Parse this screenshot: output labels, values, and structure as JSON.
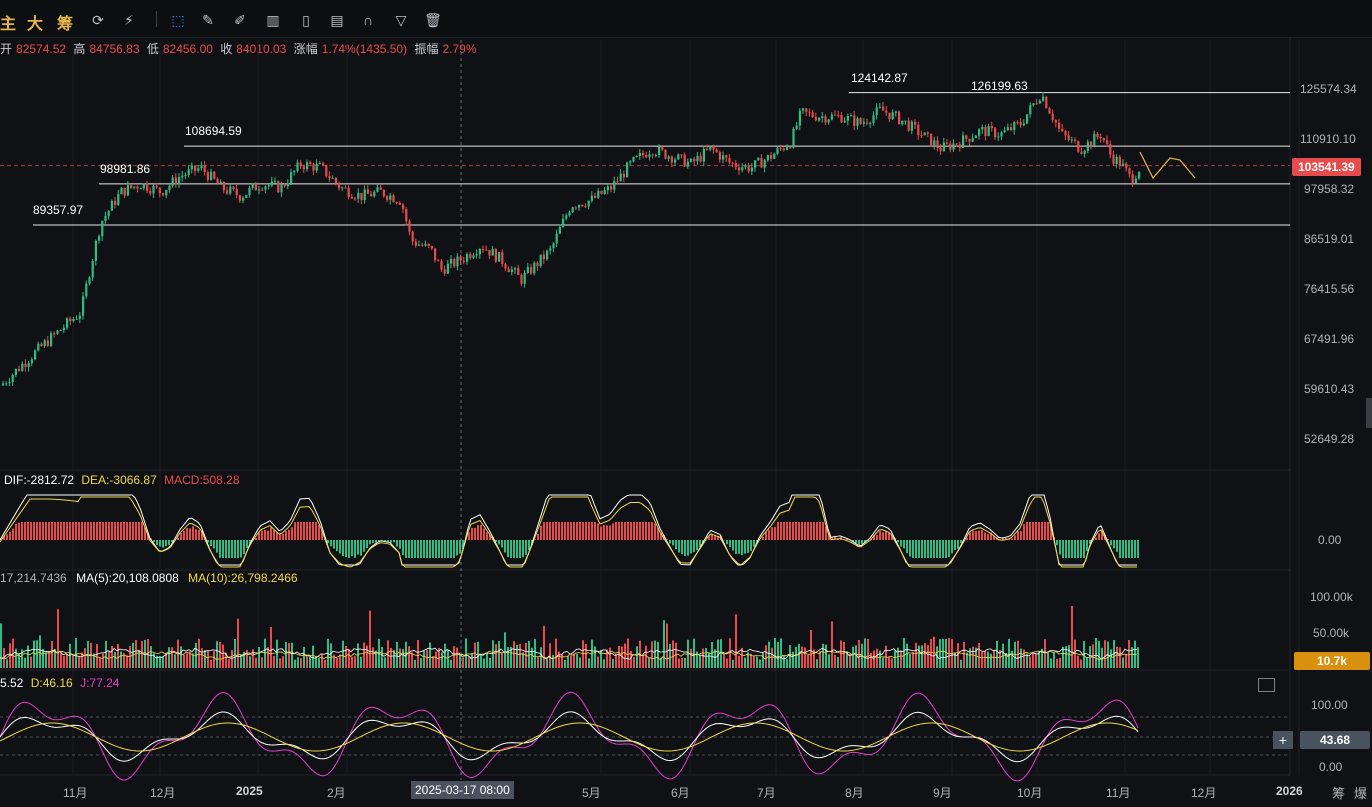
{
  "toolbar": {
    "labels": [
      "主",
      "大",
      "筹"
    ],
    "icons": [
      "refresh-icon",
      "magic-wand-icon",
      "cursor-icon",
      "ruler-icon",
      "pen-icon",
      "indicator-icon",
      "lock-icon",
      "edit-icon",
      "magnet-icon",
      "filter-icon",
      "trash-icon"
    ]
  },
  "ohlc": {
    "open_k": "开",
    "open_v": "82574.52",
    "high_k": "高",
    "high_v": "84756.83",
    "low_k": "低",
    "low_v": "82456.00",
    "close_k": "收",
    "close_v": "84010.03",
    "chg_k": "涨幅",
    "chg_v": "1.74%(1435.50)",
    "amp_k": "振幅",
    "amp_v": "2.79%"
  },
  "price_axis": [
    "125574.34",
    "110910.10",
    "97958.32",
    "86519.01",
    "76415.56",
    "67491.96",
    "59610.43",
    "52649.28"
  ],
  "current_price": "103541.39",
  "levels": {
    "l1": "124142.87",
    "l2": "126199.63",
    "l3": "108694.59",
    "l4": "98981.86",
    "l5": "89357.97"
  },
  "macd": {
    "dif": "DIF:-2812.72",
    "dea": "DEA:-3066.87",
    "macd": "MACD:508.28",
    "zero": "0.00"
  },
  "volume": {
    "vol": "17,214.7436",
    "ma5": "MA(5):20,108.0808",
    "ma10": "MA(10):26,798.2466",
    "axis": [
      "100.00k",
      "50.00k"
    ],
    "tag": "10.7k"
  },
  "kdj": {
    "k": "5.52",
    "d": "D:46.16",
    "j": "J:77.24",
    "axis": [
      "100.00",
      "0.00"
    ],
    "tag": "43.68"
  },
  "x_axis": [
    "11月",
    "12月",
    "2025",
    "2月",
    "5月",
    "6月",
    "7月",
    "8月",
    "9月",
    "10月",
    "11月",
    "12月",
    "2026"
  ],
  "crosshair_date": "2025-03-17 08:00",
  "corner": [
    "筹",
    "爆"
  ],
  "colors": {
    "up": "#2ebd85",
    "down": "#e84b4b",
    "accent": "#e5b54a",
    "dif": "#ffffff",
    "dea": "#f0d84a",
    "k": "#ffffff",
    "d": "#f0d84a",
    "j": "#e040c8"
  },
  "chart_data": {
    "type": "candlestick",
    "price_path": [
      [
        0,
        60000
      ],
      [
        20,
        63000
      ],
      [
        40,
        66000
      ],
      [
        60,
        69000
      ],
      [
        80,
        72000
      ],
      [
        100,
        90000
      ],
      [
        120,
        97000
      ],
      [
        140,
        99000
      ],
      [
        160,
        97000
      ],
      [
        180,
        101000
      ],
      [
        200,
        103000
      ],
      [
        220,
        98000
      ],
      [
        240,
        96000
      ],
      [
        260,
        99000
      ],
      [
        280,
        98000
      ],
      [
        300,
        104000
      ],
      [
        320,
        103000
      ],
      [
        340,
        98000
      ],
      [
        360,
        96000
      ],
      [
        380,
        97000
      ],
      [
        400,
        95000
      ],
      [
        410,
        86000
      ],
      [
        430,
        84000
      ],
      [
        440,
        80000
      ],
      [
        460,
        82000
      ],
      [
        480,
        85000
      ],
      [
        500,
        82000
      ],
      [
        520,
        78000
      ],
      [
        530,
        80000
      ],
      [
        550,
        84000
      ],
      [
        570,
        94000
      ],
      [
        590,
        95000
      ],
      [
        610,
        98000
      ],
      [
        630,
        104000
      ],
      [
        650,
        108000
      ],
      [
        670,
        106000
      ],
      [
        690,
        104000
      ],
      [
        710,
        108000
      ],
      [
        730,
        104000
      ],
      [
        750,
        103000
      ],
      [
        770,
        106000
      ],
      [
        790,
        110000
      ],
      [
        800,
        118000
      ],
      [
        820,
        117000
      ],
      [
        840,
        117000
      ],
      [
        860,
        115000
      ],
      [
        880,
        119000
      ],
      [
        900,
        116000
      ],
      [
        920,
        112000
      ],
      [
        940,
        108000
      ],
      [
        960,
        110000
      ],
      [
        980,
        113000
      ],
      [
        1000,
        112000
      ],
      [
        1020,
        115000
      ],
      [
        1040,
        124000
      ],
      [
        1050,
        118000
      ],
      [
        1060,
        112000
      ],
      [
        1080,
        108000
      ],
      [
        1100,
        112000
      ],
      [
        1110,
        106000
      ],
      [
        1120,
        104000
      ],
      [
        1130,
        100000
      ],
      [
        1140,
        103541
      ]
    ]
  }
}
